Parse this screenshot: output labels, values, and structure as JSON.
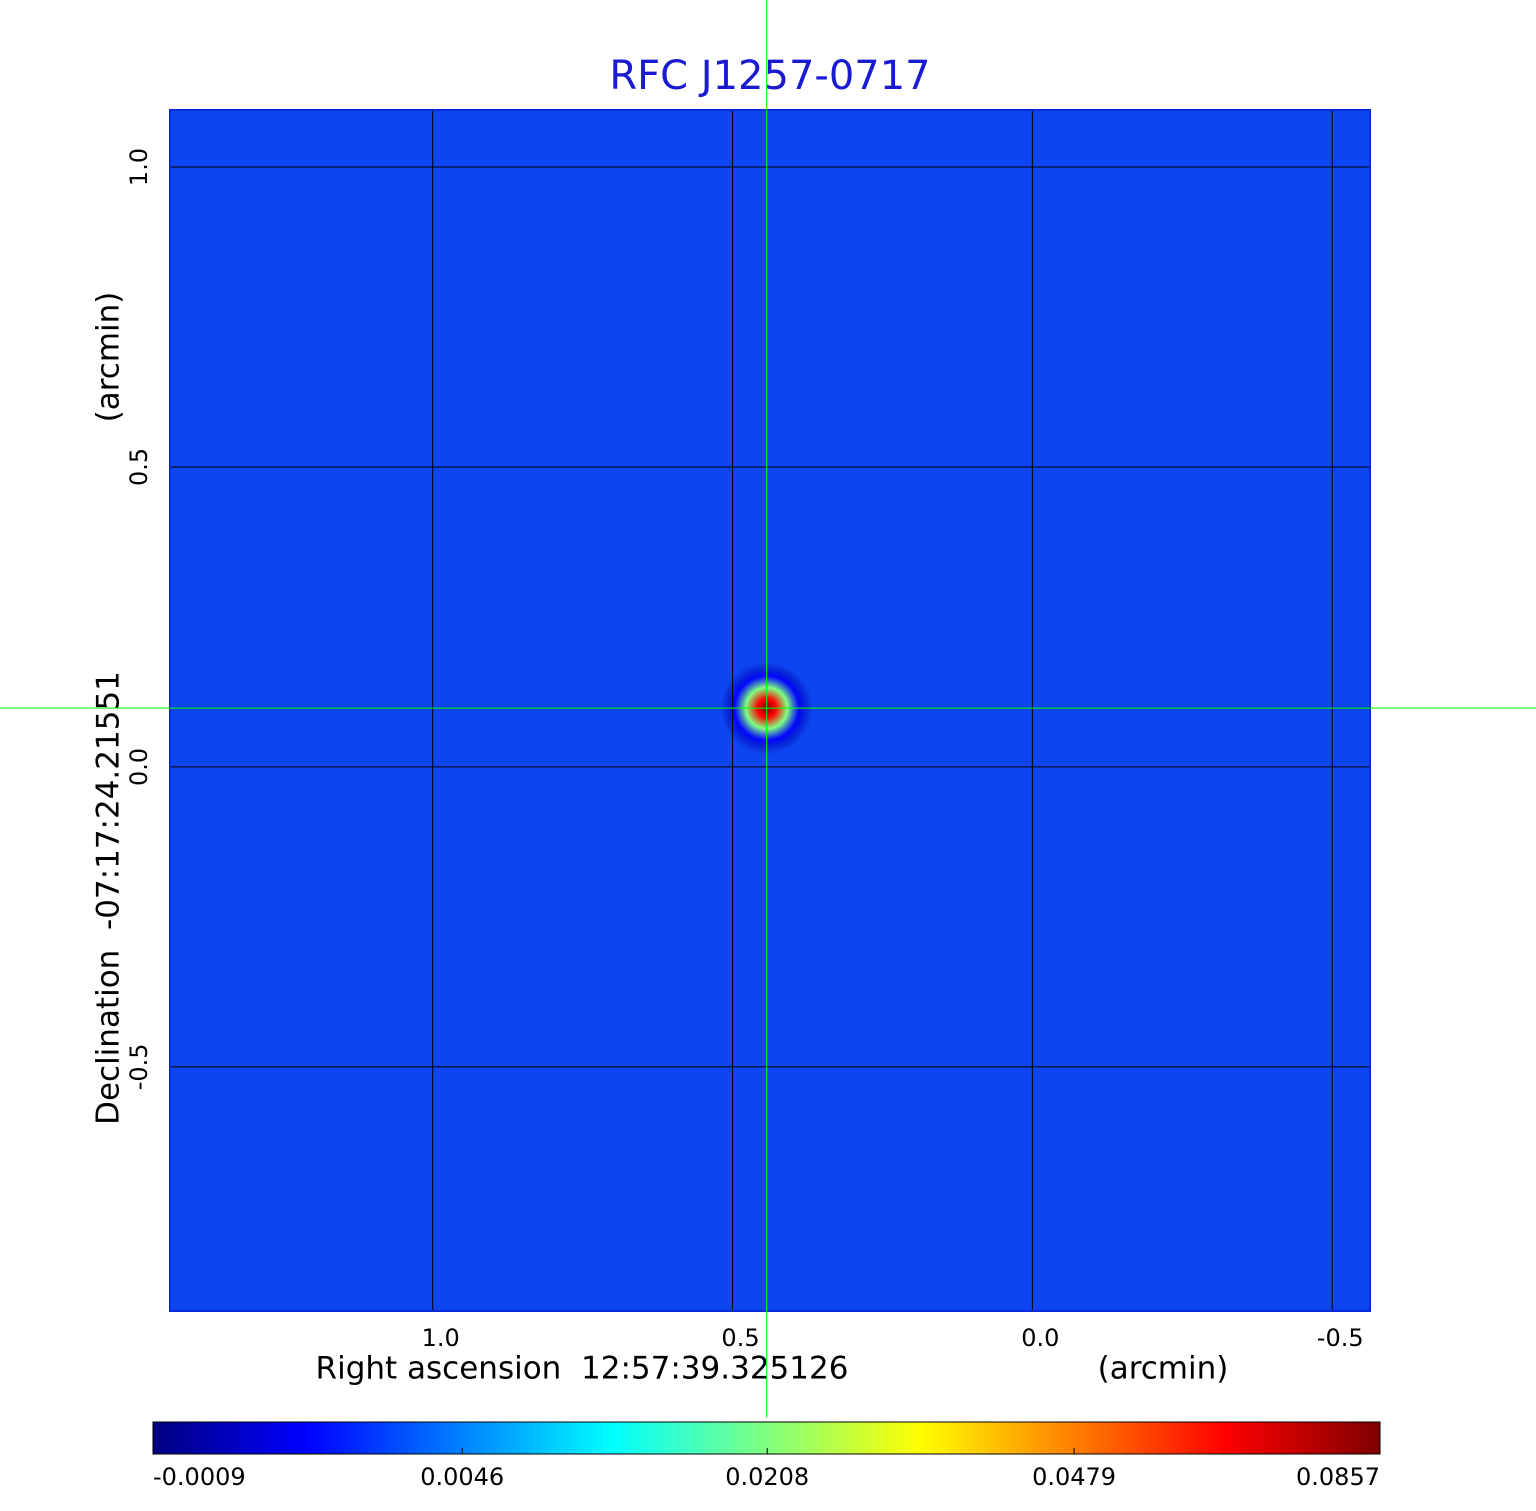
{
  "chart_data": {
    "type": "image",
    "title": "RFC J1257-0717",
    "x_label": "Right ascension  12:57:39.325126",
    "x_unit": "(arcmin)",
    "y_label": "Declination  -07:17:24.21551",
    "y_unit": "(arcmin)",
    "xlim": [
      1.438,
      -0.563
    ],
    "ylim": [
      -0.907,
      1.095
    ],
    "xticks": [
      {
        "value": 1,
        "label": "1.0"
      },
      {
        "value": 0.5,
        "label": "0.5"
      },
      {
        "value": 0,
        "label": "0.0"
      },
      {
        "value": -0.5,
        "label": "-0.5"
      }
    ],
    "yticks": [
      {
        "value": 1,
        "label": "1.0"
      },
      {
        "value": 0.5,
        "label": "0.5"
      },
      {
        "value": 0,
        "label": "0.0"
      },
      {
        "value": -0.5,
        "label": "-0.5"
      }
    ],
    "grid": true,
    "colormap": "jet",
    "colorbar_scale": "sqrt",
    "colorbar_ticks": [
      -0.0009,
      0.0046,
      0.0208,
      0.0479,
      0.0857
    ],
    "source": {
      "x": 0.443,
      "y": 0.098,
      "peak": 0.0857
    },
    "crosshair": {
      "x": 0.443,
      "y": 0.098,
      "color": "#00ff00"
    },
    "title_color": "#1a1ad0"
  }
}
